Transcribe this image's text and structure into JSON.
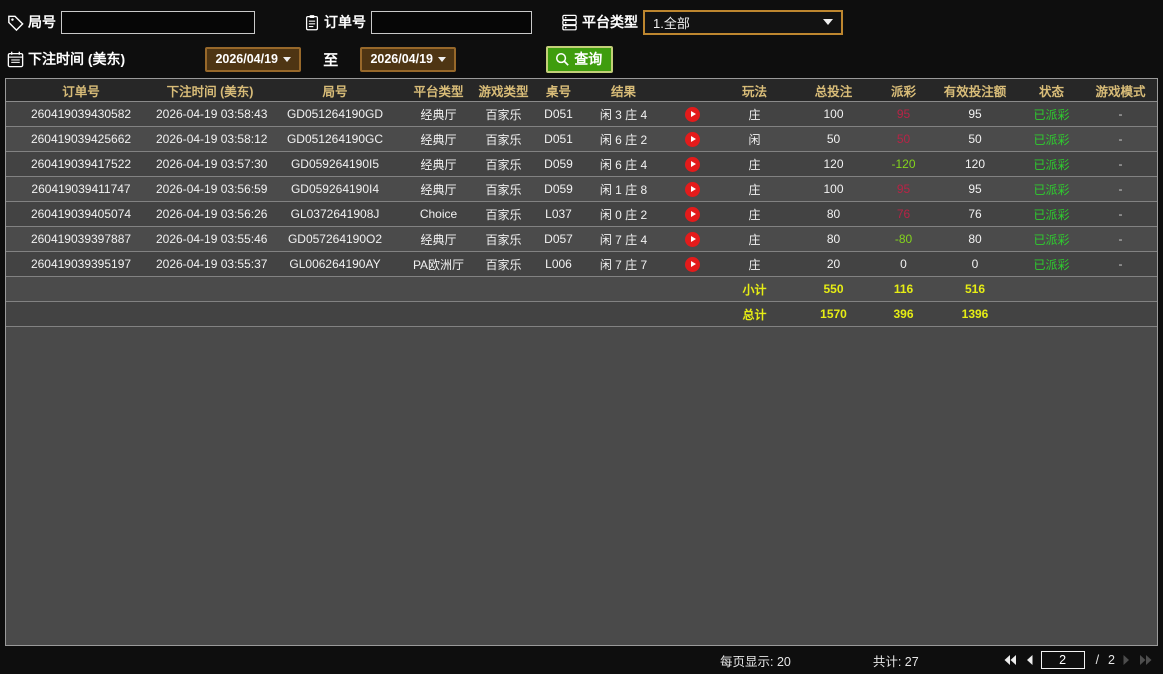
{
  "filters": {
    "round_label": "局号",
    "round_value": "",
    "order_label": "订单号",
    "order_value": "",
    "platform_label": "平台类型",
    "platform_selected": "1.全部",
    "bet_time_label": "下注时间 (美东)",
    "date_from": "2026/04/19",
    "date_to": "2026/04/19",
    "to_label": "至",
    "query_label": "查询"
  },
  "icons": {
    "round": "tag-icon",
    "order": "clipboard-icon",
    "platform": "database-icon",
    "bet_time": "calendar-icon",
    "query": "magnifier-icon",
    "result_row": "play-icon"
  },
  "colors": {
    "header_text": "#d8bc78",
    "payout_positive": "#b82346",
    "payout_negative": "#83d41c",
    "status_paid": "#2ecc2e",
    "summary_text": "#e6ed14",
    "query_button": "#3f9d0e",
    "date_box": "#4e3513",
    "play_button": "#e31b1b"
  },
  "table": {
    "columns": [
      "订单号",
      "下注时间 (美东)",
      "局号",
      "平台类型",
      "游戏类型",
      "桌号",
      "结果",
      "",
      "玩法",
      "总投注",
      "派彩",
      "有效投注额",
      "状态",
      "游戏模式"
    ],
    "rows": [
      {
        "order_id": "260419039430582",
        "bet_time": "2026-04-19 03:58:43",
        "round_id": "GD051264190GD",
        "platform": "经典厅",
        "game_type": "百家乐",
        "table_no": "D051",
        "result": "闲 3 庄 4",
        "play": "庄",
        "total_bet": "100",
        "payout": "95",
        "valid_bet": "95",
        "status": "已派彩",
        "game_mode": "-"
      },
      {
        "order_id": "260419039425662",
        "bet_time": "2026-04-19 03:58:12",
        "round_id": "GD051264190GC",
        "platform": "经典厅",
        "game_type": "百家乐",
        "table_no": "D051",
        "result": "闲 6 庄 2",
        "play": "闲",
        "total_bet": "50",
        "payout": "50",
        "valid_bet": "50",
        "status": "已派彩",
        "game_mode": "-"
      },
      {
        "order_id": "260419039417522",
        "bet_time": "2026-04-19 03:57:30",
        "round_id": "GD059264190I5",
        "platform": "经典厅",
        "game_type": "百家乐",
        "table_no": "D059",
        "result": "闲 6 庄 4",
        "play": "庄",
        "total_bet": "120",
        "payout": "-120",
        "valid_bet": "120",
        "status": "已派彩",
        "game_mode": "-"
      },
      {
        "order_id": "260419039411747",
        "bet_time": "2026-04-19 03:56:59",
        "round_id": "GD059264190I4",
        "platform": "经典厅",
        "game_type": "百家乐",
        "table_no": "D059",
        "result": "闲 1 庄 8",
        "play": "庄",
        "total_bet": "100",
        "payout": "95",
        "valid_bet": "95",
        "status": "已派彩",
        "game_mode": "-"
      },
      {
        "order_id": "260419039405074",
        "bet_time": "2026-04-19 03:56:26",
        "round_id": "GL0372641908J",
        "platform": "Choice",
        "game_type": "百家乐",
        "table_no": "L037",
        "result": "闲 0 庄 2",
        "play": "庄",
        "total_bet": "80",
        "payout": "76",
        "valid_bet": "76",
        "status": "已派彩",
        "game_mode": "-"
      },
      {
        "order_id": "260419039397887",
        "bet_time": "2026-04-19 03:55:46",
        "round_id": "GD057264190O2",
        "platform": "经典厅",
        "game_type": "百家乐",
        "table_no": "D057",
        "result": "闲 7 庄 4",
        "play": "庄",
        "total_bet": "80",
        "payout": "-80",
        "valid_bet": "80",
        "status": "已派彩",
        "game_mode": "-"
      },
      {
        "order_id": "260419039395197",
        "bet_time": "2026-04-19 03:55:37",
        "round_id": "GL006264190AY",
        "platform": "PA欧洲厅",
        "game_type": "百家乐",
        "table_no": "L006",
        "result": "闲 7 庄 7",
        "play": "庄",
        "total_bet": "20",
        "payout": "0",
        "valid_bet": "0",
        "status": "已派彩",
        "game_mode": "-"
      }
    ],
    "summary_rows": [
      {
        "label": "小计",
        "total_bet": "550",
        "payout": "116",
        "valid_bet": "516"
      },
      {
        "label": "总计",
        "total_bet": "1570",
        "payout": "396",
        "valid_bet": "1396"
      }
    ]
  },
  "pagination": {
    "per_page": "每页显示: 20",
    "total": "共计: 27",
    "current_page": "2",
    "separator": "/",
    "total_pages": "2"
  }
}
